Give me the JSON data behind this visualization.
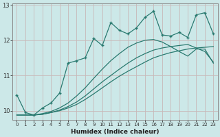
{
  "xlabel": "Humidex (Indice chaleur)",
  "bg_color": "#cce8e8",
  "grid_color": "#b8d8d8",
  "line_color": "#2a7a70",
  "xlim": [
    -0.5,
    23.5
  ],
  "ylim": [
    9.75,
    13.05
  ],
  "yticks": [
    10,
    11,
    12,
    13
  ],
  "xticks": [
    0,
    1,
    2,
    3,
    4,
    5,
    6,
    7,
    8,
    9,
    10,
    11,
    12,
    13,
    14,
    15,
    16,
    17,
    18,
    19,
    20,
    21,
    22,
    23
  ],
  "series1_x": [
    0,
    1,
    2,
    3,
    4,
    5,
    6,
    7,
    8,
    9,
    10,
    11,
    12,
    13,
    14,
    15,
    16,
    17,
    18,
    19,
    20,
    21,
    22,
    23
  ],
  "series1_y": [
    10.45,
    9.95,
    9.88,
    10.08,
    10.22,
    10.5,
    11.35,
    11.42,
    11.5,
    12.05,
    11.85,
    12.5,
    12.28,
    12.18,
    12.35,
    12.65,
    12.82,
    12.15,
    12.12,
    12.22,
    12.08,
    12.72,
    12.78,
    12.18
  ],
  "series2_x": [
    0,
    1,
    2,
    3,
    4,
    5,
    6,
    7,
    8,
    9,
    10,
    11,
    12,
    13,
    14,
    15,
    16,
    17,
    18,
    19,
    20,
    21,
    22,
    23
  ],
  "series2_y": [
    9.88,
    9.88,
    9.88,
    9.9,
    9.95,
    10.0,
    10.08,
    10.18,
    10.32,
    10.48,
    10.65,
    10.82,
    10.98,
    11.12,
    11.25,
    11.38,
    11.5,
    11.58,
    11.65,
    11.7,
    11.75,
    11.78,
    11.8,
    11.82
  ],
  "series3_x": [
    0,
    1,
    2,
    3,
    4,
    5,
    6,
    7,
    8,
    9,
    10,
    11,
    12,
    13,
    14,
    15,
    16,
    17,
    18,
    19,
    20,
    21,
    22,
    23
  ],
  "series3_y": [
    9.88,
    9.88,
    9.88,
    9.9,
    9.95,
    10.02,
    10.12,
    10.25,
    10.42,
    10.62,
    10.82,
    11.0,
    11.18,
    11.35,
    11.5,
    11.62,
    11.72,
    11.78,
    11.82,
    11.85,
    11.88,
    11.78,
    11.68,
    11.38
  ],
  "series4_x": [
    0,
    1,
    2,
    3,
    4,
    5,
    6,
    7,
    8,
    9,
    10,
    11,
    12,
    13,
    14,
    15,
    16,
    17,
    18,
    19,
    20,
    21,
    22,
    23
  ],
  "series4_y": [
    9.88,
    9.88,
    9.88,
    9.92,
    9.98,
    10.08,
    10.22,
    10.42,
    10.65,
    10.92,
    11.18,
    11.42,
    11.62,
    11.8,
    11.92,
    12.0,
    12.02,
    11.95,
    11.82,
    11.68,
    11.55,
    11.75,
    11.75,
    11.35
  ]
}
